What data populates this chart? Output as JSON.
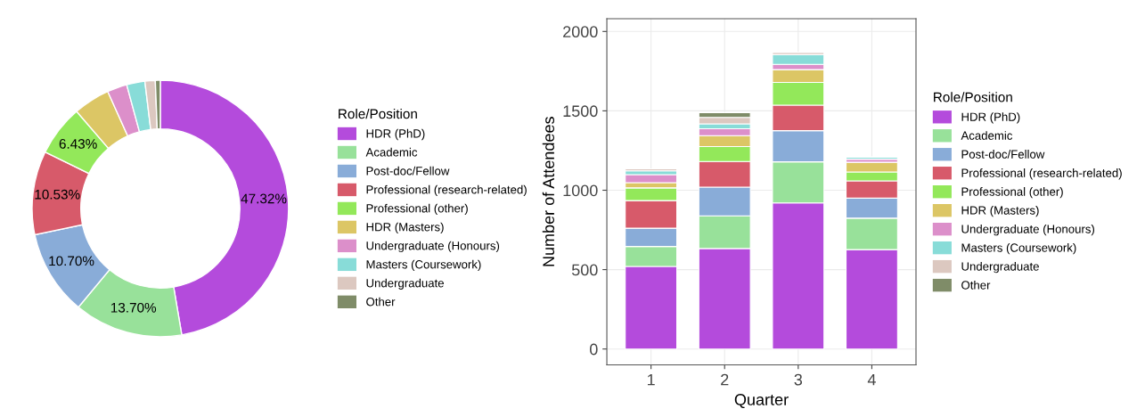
{
  "chart_data": [
    {
      "type": "donut",
      "legend_title": "Role/Position",
      "legend": "right",
      "categories": [
        "HDR (PhD)",
        "Academic",
        "Post-doc/Fellow",
        "Professional (research-related)",
        "Professional (other)",
        "HDR (Masters)",
        "Undergraduate (Honours)",
        "Masters (Coursework)",
        "Undergraduate",
        "Other"
      ],
      "values": [
        47.32,
        13.7,
        10.7,
        10.53,
        6.43,
        4.6,
        2.5,
        2.3,
        1.3,
        0.62
      ],
      "value_labels": [
        "47.32%",
        "13.70%",
        "10.70%",
        "10.53%",
        "6.43%",
        null,
        null,
        null,
        null,
        null
      ],
      "colors": [
        "#b44bdc",
        "#98e19a",
        "#89acd8",
        "#d75a6a",
        "#93e85a",
        "#dcc665",
        "#dc8fca",
        "#88dcd8",
        "#dcc8c0",
        "#7f8c68"
      ]
    },
    {
      "type": "bar",
      "stacked": true,
      "xlabel": "Quarter",
      "ylabel": "Number of Attendees",
      "legend_title": "Role/Position",
      "legend": "right",
      "grid": true,
      "categories": [
        "1",
        "2",
        "3",
        "4"
      ],
      "ylim": [
        -100,
        2080
      ],
      "yticks": [
        0,
        500,
        1000,
        1500,
        2000
      ],
      "series": [
        {
          "name": "HDR (PhD)",
          "color": "#b44bdc",
          "values": [
            520,
            633,
            920,
            626
          ]
        },
        {
          "name": "Academic",
          "color": "#98e19a",
          "values": [
            126,
            206,
            259,
            198
          ]
        },
        {
          "name": "Post-doc/Fellow",
          "color": "#89acd8",
          "values": [
            115,
            181,
            196,
            126
          ]
        },
        {
          "name": "Professional (research-related)",
          "color": "#d75a6a",
          "values": [
            174,
            161,
            161,
            109
          ]
        },
        {
          "name": "Professional (other)",
          "color": "#93e85a",
          "values": [
            80,
            94,
            143,
            56
          ]
        },
        {
          "name": "HDR (Masters)",
          "color": "#dcc665",
          "values": [
            33,
            69,
            81,
            61
          ]
        },
        {
          "name": "Undergraduate (Honours)",
          "color": "#dc8fca",
          "values": [
            50,
            43,
            33,
            20
          ]
        },
        {
          "name": "Masters (Coursework)",
          "color": "#88dcd8",
          "values": [
            24,
            31,
            61,
            13
          ]
        },
        {
          "name": "Undergraduate",
          "color": "#dcc8c0",
          "values": [
            13,
            41,
            15,
            null
          ]
        },
        {
          "name": "Other",
          "color": "#7f8c68",
          "values": [
            null,
            30,
            null,
            null
          ]
        }
      ]
    }
  ]
}
